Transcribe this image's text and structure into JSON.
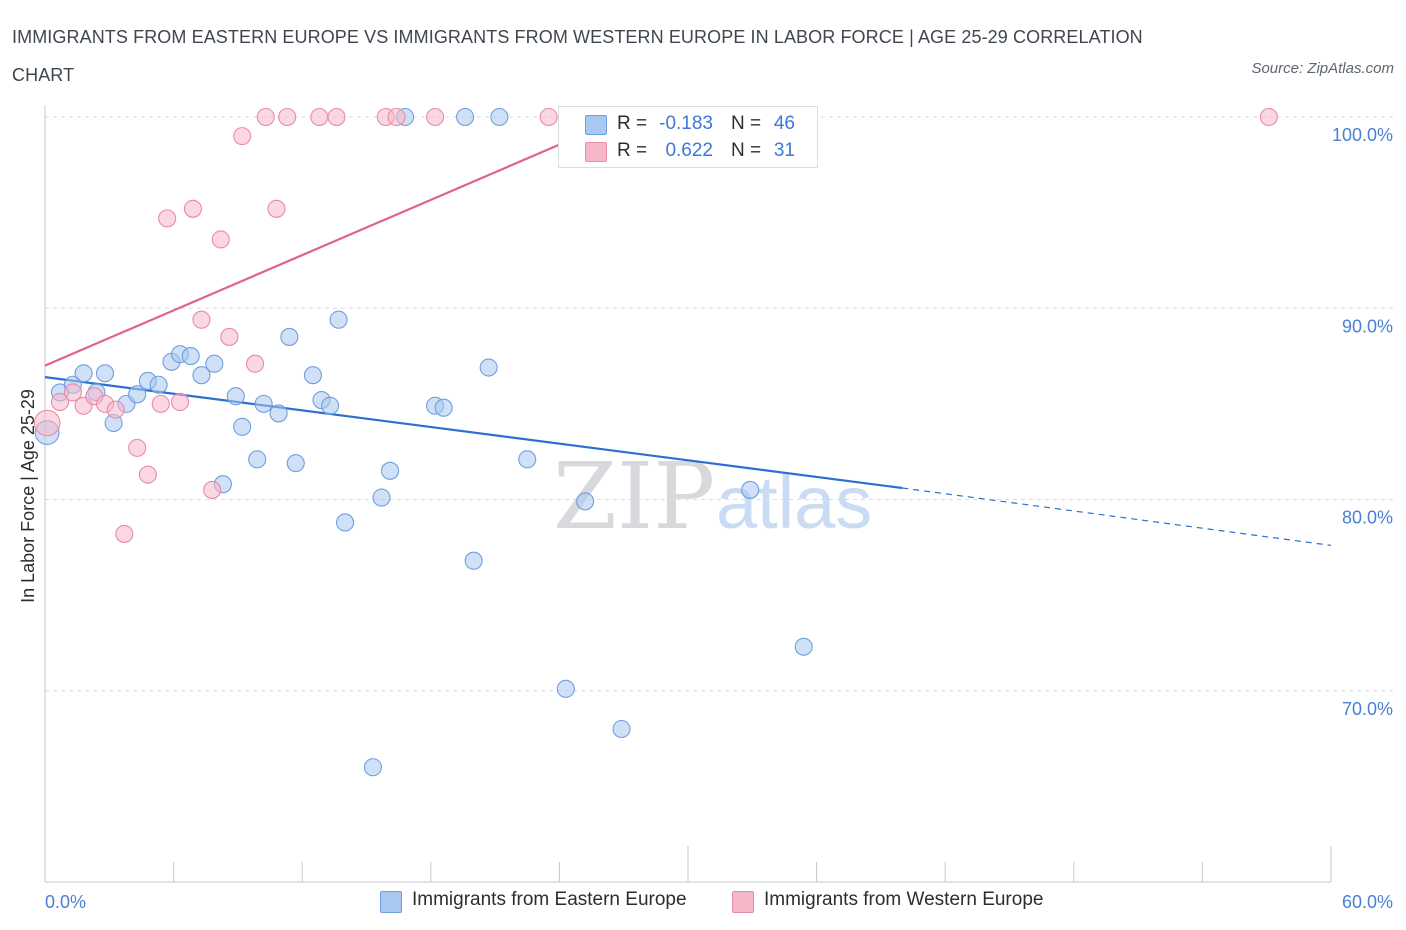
{
  "title": "IMMIGRANTS FROM EASTERN EUROPE VS IMMIGRANTS FROM WESTERN EUROPE IN LABOR FORCE | AGE 25-29 CORRELATION CHART",
  "source": "Source: ZipAtlas.com",
  "watermark": {
    "zip": "ZIP",
    "atlas": "atlas"
  },
  "legend": {
    "rows": [
      {
        "r_label": "R =",
        "r_value": "-0.183",
        "n_label": "N =",
        "n_value": "46",
        "color": "#a9c8f0"
      },
      {
        "r_label": "R =",
        "r_value": "0.622",
        "n_label": "N =",
        "n_value": "31",
        "color": "#f6b7c9"
      }
    ]
  },
  "bottom_legend": {
    "eastern": "Immigrants from Eastern Europe",
    "western": "Immigrants from Western Europe"
  },
  "colors": {
    "blue_fill": "#a9c8f0",
    "blue_stroke": "#6f9fe0",
    "blue_line": "#2c6fd1",
    "pink_fill": "#f6b7c9",
    "pink_stroke": "#e98aa8",
    "pink_line": "#e0628b",
    "tick_text": "#4a7fd6",
    "grid": "#d9dde2"
  },
  "chart_data": {
    "type": "scatter",
    "title": "IMMIGRANTS FROM EASTERN EUROPE VS IMMIGRANTS FROM WESTERN EUROPE IN LABOR FORCE | AGE 25-29 CORRELATION CHART",
    "xlabel": "",
    "ylabel": "In Labor Force | Age 25-29",
    "xlim": [
      0,
      60
    ],
    "ylim": [
      60,
      100
    ],
    "x_tick_labels": [
      "0.0%",
      "60.0%"
    ],
    "y_ticks": [
      70,
      80,
      90,
      100
    ],
    "y_tick_labels": [
      "70.0%",
      "80.0%",
      "90.0%",
      "100.0%"
    ],
    "grid": "horizontal dashed",
    "legend_position": "top-center",
    "series": [
      {
        "name": "Immigrants from Eastern Europe",
        "color": "#a9c8f0",
        "points": [
          [
            0.1,
            83.5,
            1.4
          ],
          [
            0.7,
            85.6,
            1
          ],
          [
            1.3,
            86.0,
            1
          ],
          [
            1.8,
            86.6,
            1
          ],
          [
            2.4,
            85.6,
            1
          ],
          [
            2.8,
            86.6,
            1
          ],
          [
            3.2,
            84.0,
            1
          ],
          [
            3.8,
            85.0,
            1
          ],
          [
            4.3,
            85.5,
            1
          ],
          [
            4.8,
            86.2,
            1
          ],
          [
            5.3,
            86.0,
            1
          ],
          [
            5.9,
            87.2,
            1
          ],
          [
            6.3,
            87.6,
            1
          ],
          [
            6.8,
            87.5,
            1
          ],
          [
            7.3,
            86.5,
            1
          ],
          [
            7.9,
            87.1,
            1
          ],
          [
            8.3,
            80.8,
            1
          ],
          [
            8.9,
            85.4,
            1
          ],
          [
            9.2,
            83.8,
            1
          ],
          [
            9.9,
            82.1,
            1
          ],
          [
            10.2,
            85.0,
            1
          ],
          [
            10.9,
            84.5,
            1
          ],
          [
            11.4,
            88.5,
            1
          ],
          [
            11.7,
            81.9,
            1
          ],
          [
            12.5,
            86.5,
            1
          ],
          [
            12.9,
            85.2,
            1
          ],
          [
            13.3,
            84.9,
            1
          ],
          [
            13.7,
            89.4,
            1
          ],
          [
            14.0,
            78.8,
            1
          ],
          [
            15.3,
            66.0,
            1
          ],
          [
            15.7,
            80.1,
            1
          ],
          [
            16.1,
            81.5,
            1
          ],
          [
            16.8,
            100.0,
            1
          ],
          [
            18.2,
            84.9,
            1
          ],
          [
            18.6,
            84.8,
            1
          ],
          [
            19.6,
            100.0,
            1
          ],
          [
            20.0,
            76.8,
            1
          ],
          [
            20.7,
            86.9,
            1
          ],
          [
            21.2,
            100.0,
            1
          ],
          [
            22.5,
            82.1,
            1
          ],
          [
            24.3,
            70.1,
            1
          ],
          [
            25.2,
            79.9,
            1
          ],
          [
            26.9,
            68.0,
            1
          ],
          [
            32.0,
            100.0,
            1
          ],
          [
            32.9,
            80.5,
            1
          ],
          [
            35.4,
            72.3,
            1
          ]
        ]
      },
      {
        "name": "Immigrants from Western Europe",
        "color": "#f6b7c9",
        "points": [
          [
            0.1,
            84.0,
            1.5
          ],
          [
            0.7,
            85.1,
            1
          ],
          [
            1.3,
            85.6,
            1
          ],
          [
            1.8,
            84.9,
            1
          ],
          [
            2.3,
            85.4,
            1
          ],
          [
            2.8,
            85.0,
            1
          ],
          [
            3.3,
            84.7,
            1
          ],
          [
            3.7,
            78.2,
            1
          ],
          [
            4.3,
            82.7,
            1
          ],
          [
            4.8,
            81.3,
            1
          ],
          [
            5.4,
            85.0,
            1
          ],
          [
            5.7,
            94.7,
            1
          ],
          [
            6.3,
            85.1,
            1
          ],
          [
            6.9,
            95.2,
            1
          ],
          [
            7.3,
            89.4,
            1
          ],
          [
            7.8,
            80.5,
            1
          ],
          [
            8.2,
            93.6,
            1
          ],
          [
            8.6,
            88.5,
            1
          ],
          [
            9.2,
            99.0,
            1
          ],
          [
            9.8,
            87.1,
            1
          ],
          [
            10.3,
            100.0,
            1
          ],
          [
            10.8,
            95.2,
            1
          ],
          [
            11.3,
            100.0,
            1
          ],
          [
            12.8,
            100.0,
            1
          ],
          [
            13.6,
            100.0,
            1
          ],
          [
            15.9,
            100.0,
            1
          ],
          [
            16.4,
            100.0,
            1
          ],
          [
            18.2,
            100.0,
            1
          ],
          [
            23.5,
            100.0,
            1
          ],
          [
            32.8,
            100.0,
            1
          ],
          [
            57.1,
            100.0,
            1
          ]
        ]
      }
    ],
    "trend_lines": [
      {
        "series": "Immigrants from Eastern Europe",
        "x0": 0,
        "y0": 86.4,
        "x1": 40.0,
        "y1": 80.6,
        "dashed_to_x": 60.0,
        "dashed_to_y": 77.6
      },
      {
        "series": "Immigrants from Western Europe",
        "x0": 0,
        "y0": 87.0,
        "x1": 27.0,
        "y1": 100.0
      }
    ]
  }
}
